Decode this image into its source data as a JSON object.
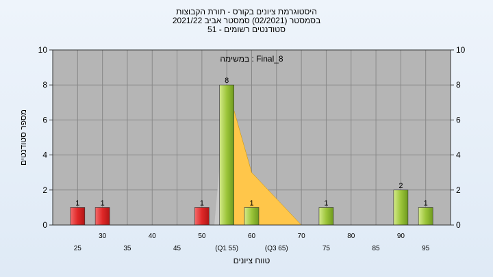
{
  "title_lines": [
    "היסטוגרמת ציונים בקורס - תורת הקבוצות",
    "בסמסטר  (02/2021)  סמסטר אביב 2021/22",
    "סטודנטים רשומים - 51"
  ],
  "colors": {
    "fail_bar": "#e02828",
    "pass_bar": "#9cc53a",
    "quartile_fill": "#ffc64a",
    "plot_bg": "#b5b5b5",
    "grid": "#888888"
  },
  "chart_data": {
    "type": "bar",
    "title": "היסטוגרמת ציונים בקורס - תורת הקבוצות",
    "annotation": "במשימה : Final_8",
    "xlabel": "טווח ציונים",
    "ylabel": "מספר סטודנטים",
    "ylim": [
      0,
      10
    ],
    "yticks": [
      0,
      2,
      4,
      6,
      8,
      10
    ],
    "grid": true,
    "xticks_row1": [
      {
        "x": 25,
        "label": "25"
      },
      {
        "x": 35,
        "label": "35"
      },
      {
        "x": 45,
        "label": "45"
      },
      {
        "x": 55,
        "label": "(Q1 55)"
      },
      {
        "x": 65,
        "label": "(Q3 65)"
      },
      {
        "x": 75,
        "label": "75"
      },
      {
        "x": 85,
        "label": "85"
      },
      {
        "x": 95,
        "label": "95"
      }
    ],
    "xticks_row2": [
      {
        "x": 30,
        "label": "30"
      },
      {
        "x": 40,
        "label": "40"
      },
      {
        "x": 50,
        "label": "50"
      },
      {
        "x": 60,
        "label": "60"
      },
      {
        "x": 70,
        "label": "70"
      },
      {
        "x": 80,
        "label": "80"
      },
      {
        "x": 90,
        "label": "90"
      }
    ],
    "bars": [
      {
        "x": 25,
        "value": 1,
        "status": "fail"
      },
      {
        "x": 30,
        "value": 1,
        "status": "fail"
      },
      {
        "x": 50,
        "value": 1,
        "status": "fail"
      },
      {
        "x": 55,
        "value": 8,
        "status": "pass"
      },
      {
        "x": 60,
        "value": 1,
        "status": "pass"
      },
      {
        "x": 75,
        "value": 1,
        "status": "pass"
      },
      {
        "x": 90,
        "value": 2,
        "status": "pass"
      },
      {
        "x": 95,
        "value": 1,
        "status": "pass"
      }
    ],
    "quartile_polygon": [
      {
        "x": 55,
        "y": 8
      },
      {
        "x": 60,
        "y": 3
      },
      {
        "x": 70,
        "y": 0
      },
      {
        "x": 55,
        "y": 0
      }
    ]
  }
}
